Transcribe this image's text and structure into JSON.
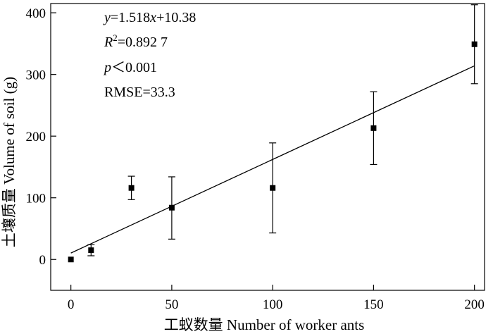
{
  "chart_data": {
    "type": "scatter",
    "title": "",
    "xlabel": "工蚁数量 Number of worker ants",
    "ylabel": "土壤质量 Volume of soil (g)",
    "xlim": [
      -10,
      205
    ],
    "ylim": [
      -50,
      415
    ],
    "xticks": [
      0,
      50,
      100,
      150,
      200
    ],
    "yticks": [
      0,
      100,
      200,
      300,
      400
    ],
    "grid": false,
    "legend": "none",
    "series": [
      {
        "points": [
          {
            "x": 0,
            "y": 0,
            "err_low": 0,
            "err_high": 0
          },
          {
            "x": 10,
            "y": 15,
            "err_low": 6,
            "err_high": 24
          },
          {
            "x": 30,
            "y": 116,
            "err_low": 97,
            "err_high": 135
          },
          {
            "x": 50,
            "y": 84,
            "err_low": 33,
            "err_high": 134
          },
          {
            "x": 100,
            "y": 116,
            "err_low": 43,
            "err_high": 189
          },
          {
            "x": 150,
            "y": 213,
            "err_low": 154,
            "err_high": 272
          },
          {
            "x": 200,
            "y": 349,
            "err_low": 285,
            "err_high": 413
          }
        ]
      }
    ],
    "fit_line": {
      "slope": 1.518,
      "intercept": 10.38,
      "x_range": [
        0,
        200
      ]
    },
    "annotations": {
      "eq_y": "y",
      "eq_mid": "=1.518",
      "eq_x": "x",
      "eq_rest": "+10.38",
      "r_letter": "R",
      "r_sup": "2",
      "r_value": "=0.892 7",
      "p_letter": "p",
      "p_value": "＜0.001",
      "rmse": "RMSE=33.3"
    }
  }
}
